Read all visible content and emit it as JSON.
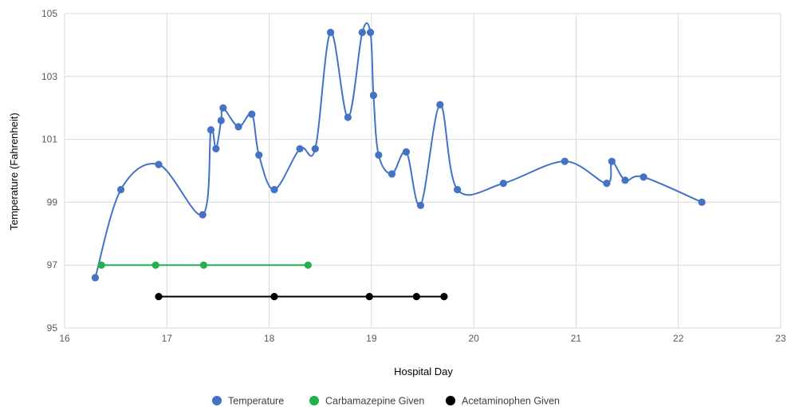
{
  "chart_data": {
    "type": "scatter",
    "xlabel": "Hospital Day",
    "ylabel": "Temperature (Fahrenheit)",
    "xlim": [
      16,
      23
    ],
    "ylim": [
      95,
      105
    ],
    "xticks": [
      16,
      17,
      18,
      19,
      20,
      21,
      22,
      23
    ],
    "yticks": [
      95,
      97,
      99,
      101,
      103,
      105
    ],
    "grid": true,
    "legend_position": "bottom",
    "series": [
      {
        "name": "Temperature",
        "color": "#4472c4",
        "line": "smooth",
        "x": [
          16.3,
          16.55,
          16.92,
          17.35,
          17.43,
          17.48,
          17.53,
          17.55,
          17.7,
          17.83,
          17.9,
          18.05,
          18.3,
          18.45,
          18.6,
          18.77,
          18.91,
          18.99,
          19.02,
          19.07,
          19.2,
          19.34,
          19.48,
          19.67,
          19.84,
          20.29,
          20.89,
          21.3,
          21.35,
          21.48,
          21.66,
          22.23
        ],
        "y": [
          96.6,
          99.4,
          100.2,
          98.6,
          101.3,
          100.7,
          101.6,
          102.0,
          101.4,
          101.8,
          100.5,
          99.4,
          100.7,
          100.7,
          104.4,
          101.7,
          104.4,
          104.4,
          102.4,
          100.5,
          99.9,
          100.6,
          98.9,
          102.1,
          99.4,
          99.6,
          100.3,
          99.6,
          100.3,
          99.7,
          99.8,
          99.0
        ]
      },
      {
        "name": "Carbamazepine Given",
        "color": "#22b14c",
        "line": "straight",
        "x": [
          16.36,
          16.89,
          17.36,
          18.38
        ],
        "y": [
          97,
          97,
          97,
          97
        ]
      },
      {
        "name": "Acetaminophen Given",
        "color": "#000000",
        "line": "straight",
        "x": [
          16.92,
          18.05,
          18.98,
          19.44,
          19.71
        ],
        "y": [
          96,
          96,
          96,
          96,
          96
        ]
      }
    ]
  }
}
